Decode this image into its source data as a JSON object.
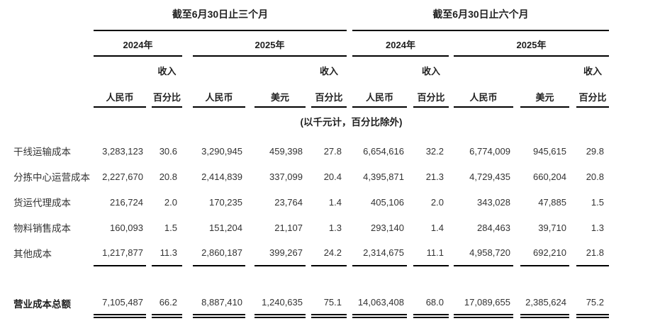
{
  "header": {
    "period_3m": "截至6月30日止三个月",
    "period_6m": "截至6月30日止六个月",
    "year_2024": "2024年",
    "year_2025": "2025年",
    "revenue_label": "收入",
    "rmb_label": "人民币",
    "usd_label": "美元",
    "pct_label": "百分比",
    "units_note": "(以千元计，百分比除外)"
  },
  "colors": {
    "text": "#333333",
    "heading": "#1f1f1f",
    "rule": "#000000",
    "background": "#ffffff"
  },
  "rows": [
    {
      "label": "干线运输成本",
      "values": [
        "3,283,123",
        "30.6",
        "3,290,945",
        "459,398",
        "27.8",
        "6,654,616",
        "32.2",
        "6,774,009",
        "945,615",
        "29.8"
      ]
    },
    {
      "label": "分拣中心运营成本",
      "values": [
        "2,227,670",
        "20.8",
        "2,414,839",
        "337,099",
        "20.4",
        "4,395,871",
        "21.3",
        "4,729,435",
        "660,204",
        "20.8"
      ]
    },
    {
      "label": "货运代理成本",
      "values": [
        "216,724",
        "2.0",
        "170,235",
        "23,764",
        "1.4",
        "405,106",
        "2.0",
        "343,028",
        "47,885",
        "1.5"
      ]
    },
    {
      "label": "物料销售成本",
      "values": [
        "160,093",
        "1.5",
        "151,204",
        "21,107",
        "1.3",
        "293,140",
        "1.4",
        "284,463",
        "39,710",
        "1.3"
      ]
    },
    {
      "label": "其他成本",
      "values": [
        "1,217,877",
        "11.3",
        "2,860,187",
        "399,267",
        "24.2",
        "2,314,675",
        "11.1",
        "4,958,720",
        "692,210",
        "21.8"
      ]
    }
  ],
  "total": {
    "label": "营业成本总额",
    "values": [
      "7,105,487",
      "66.2",
      "8,887,410",
      "1,240,635",
      "75.1",
      "14,063,408",
      "68.0",
      "17,089,655",
      "2,385,624",
      "75.2"
    ]
  }
}
